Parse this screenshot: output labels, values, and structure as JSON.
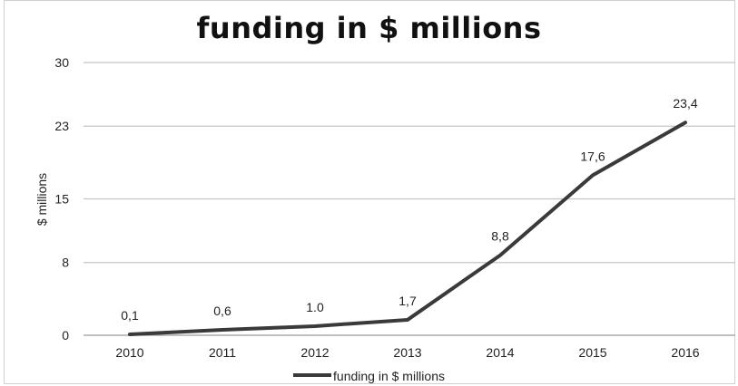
{
  "chart_data": {
    "type": "line",
    "title": "funding in $ millions",
    "ylabel": "$ millions",
    "xlabel": "",
    "categories": [
      "2010",
      "2011",
      "2012",
      "2013",
      "2014",
      "2015",
      "2016"
    ],
    "series": [
      {
        "name": "funding in $ millions",
        "values": [
          0.1,
          0.6,
          1.0,
          1.7,
          8.8,
          17.6,
          23.4
        ],
        "data_labels": [
          "0,1",
          "0,6",
          "1.0",
          "1,7",
          "8,8",
          "17,6",
          "23,4"
        ],
        "color": "#3a3a3a"
      }
    ],
    "ylim": [
      0,
      30
    ],
    "yticks": [
      0,
      8,
      15,
      23,
      30
    ],
    "grid": "horizontal",
    "legend": "bottom"
  },
  "legend_label": "funding in $ millions"
}
